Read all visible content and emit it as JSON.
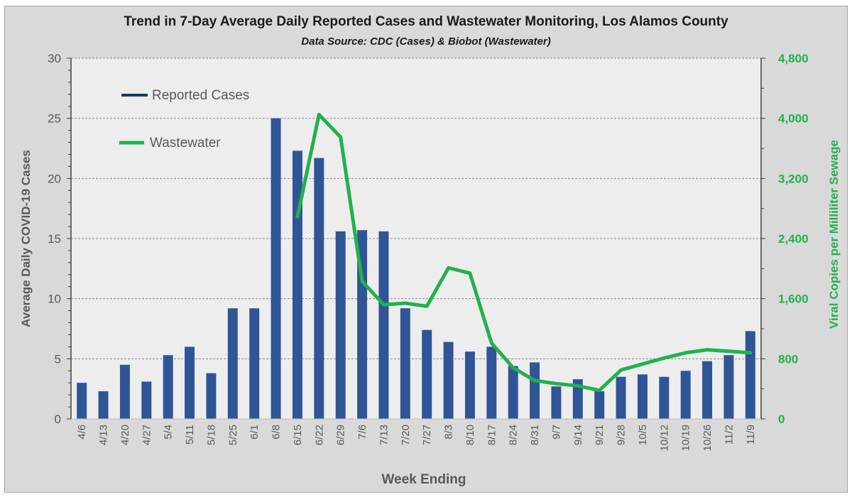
{
  "chart_data": {
    "type": "bar",
    "title": "Trend in 7-Day Average Daily Reported Cases and Wastewater Monitoring, Los Alamos County",
    "subtitle": "Data Source: CDC (Cases) & Biobot (Wastewater)",
    "xlabel": "Week Ending",
    "ylabel": "Average Daily COVID-19 Cases",
    "y2label": "Viral Copies per Milliliter Sewage",
    "ylim": [
      0,
      30
    ],
    "y2lim": [
      0,
      4800
    ],
    "yticks": [
      0,
      5,
      10,
      15,
      20,
      25,
      30
    ],
    "y2ticks": [
      "0",
      "800",
      "1,600",
      "2,400",
      "3,200",
      "4,000",
      "4,800"
    ],
    "y2tick_values": [
      0,
      800,
      1600,
      2400,
      3200,
      4000,
      4800
    ],
    "grid": true,
    "legend_position": "top-left",
    "categories": [
      "4/6",
      "4/13",
      "4/20",
      "4/27",
      "5/4",
      "5/11",
      "5/18",
      "5/25",
      "6/1",
      "6/8",
      "6/15",
      "6/22",
      "6/29",
      "7/6",
      "7/13",
      "7/20",
      "7/27",
      "8/3",
      "8/10",
      "8/17",
      "8/24",
      "8/31",
      "9/7",
      "9/14",
      "9/21",
      "9/28",
      "10/5",
      "10/12",
      "10/19",
      "10/26",
      "11/2",
      "11/9"
    ],
    "series": [
      {
        "name": "Reported Cases",
        "type": "bar",
        "axis": "left",
        "color": "#2f5597",
        "values": [
          3.0,
          2.3,
          4.5,
          3.1,
          5.3,
          6.0,
          3.8,
          9.2,
          9.2,
          25.0,
          22.3,
          21.7,
          15.6,
          15.7,
          15.6,
          9.2,
          7.4,
          6.4,
          5.6,
          6.0,
          4.4,
          4.7,
          2.7,
          3.3,
          2.3,
          3.5,
          3.7,
          3.5,
          4.0,
          4.8,
          5.3,
          7.3
        ]
      },
      {
        "name": "Wastewater",
        "type": "line",
        "axis": "right",
        "color": "#22b14c",
        "values": [
          null,
          null,
          null,
          null,
          null,
          null,
          null,
          null,
          null,
          null,
          2690,
          4050,
          3750,
          1830,
          1520,
          1540,
          1500,
          2010,
          1940,
          1010,
          680,
          510,
          470,
          440,
          380,
          650,
          730,
          810,
          880,
          920,
          900,
          880
        ]
      }
    ]
  }
}
